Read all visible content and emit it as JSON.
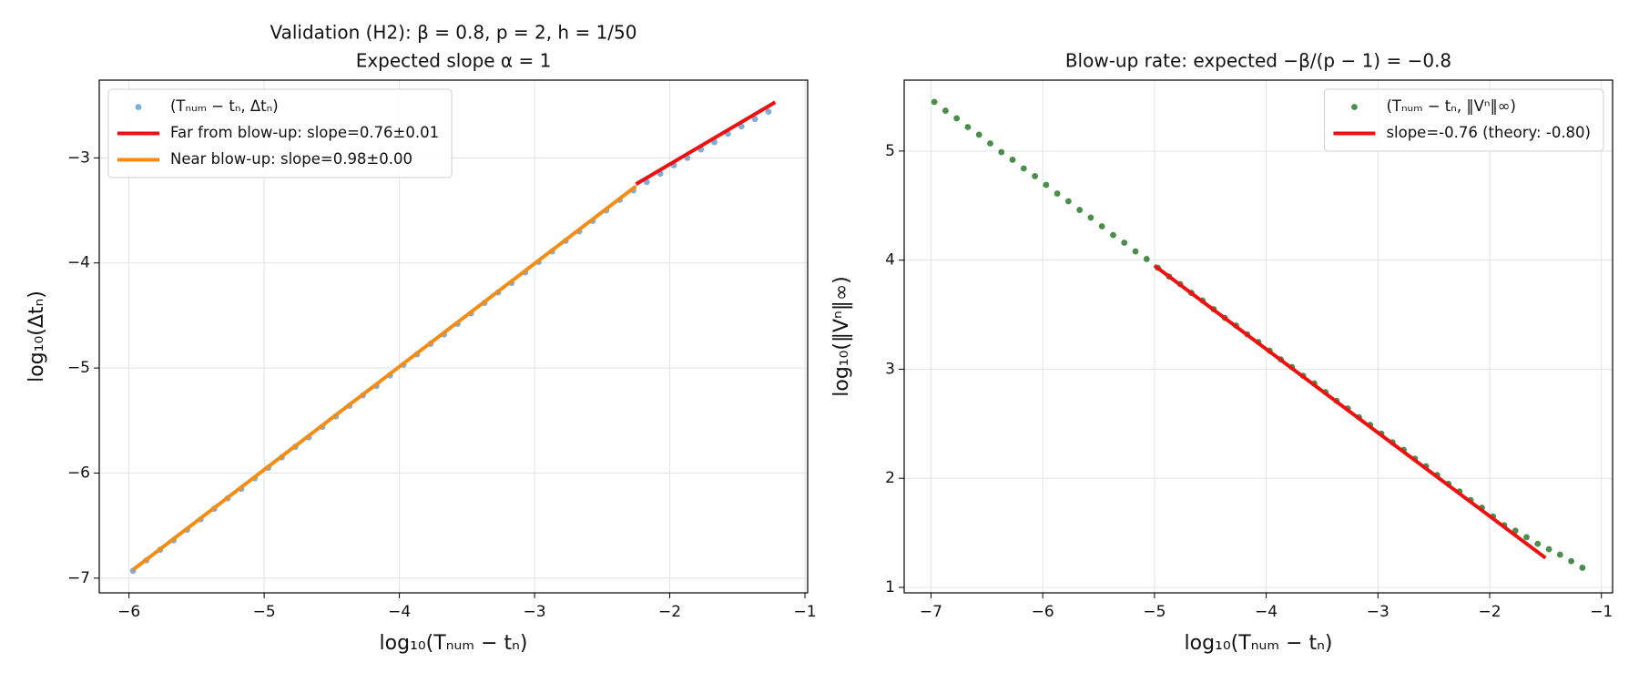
{
  "chart_data": [
    {
      "type": "scatter",
      "title": "Validation (H2): β = 0.8, p = 2, h = 1/50",
      "subtitle": "Expected slope α = 1",
      "xlabel": "log₁₀(Tₙᵤₘ − tₙ)",
      "ylabel": "log₁₀(Δtₙ)",
      "xlim": [
        -6.22,
        -0.98
      ],
      "ylim": [
        -7.14,
        -2.26
      ],
      "xticks": [
        {
          "value": -6,
          "label": "−6"
        },
        {
          "value": -5,
          "label": "−5"
        },
        {
          "value": -4,
          "label": "−4"
        },
        {
          "value": -3,
          "label": "−3"
        },
        {
          "value": -2,
          "label": "−2"
        },
        {
          "value": -1,
          "label": "−1"
        }
      ],
      "yticks": [
        {
          "value": -7,
          "label": "−7"
        },
        {
          "value": -6,
          "label": "−6"
        },
        {
          "value": -5,
          "label": "−5"
        },
        {
          "value": -4,
          "label": "−4"
        },
        {
          "value": -3,
          "label": "−3"
        }
      ],
      "grid": true,
      "legend": "upper left",
      "series": [
        {
          "name": "(Tₙᵤₘ − tₙ, Δtₙ)",
          "type": "scatter",
          "color": "#6a9fcf",
          "x": [
            -5.97,
            -5.87,
            -5.77,
            -5.67,
            -5.57,
            -5.47,
            -5.37,
            -5.27,
            -5.17,
            -5.07,
            -4.97,
            -4.87,
            -4.77,
            -4.67,
            -4.57,
            -4.47,
            -4.37,
            -4.27,
            -4.17,
            -4.07,
            -3.97,
            -3.87,
            -3.77,
            -3.67,
            -3.57,
            -3.47,
            -3.37,
            -3.27,
            -3.17,
            -3.07,
            -2.97,
            -2.87,
            -2.77,
            -2.67,
            -2.57,
            -2.47,
            -2.37,
            -2.27,
            -2.17,
            -2.07,
            -1.97,
            -1.87,
            -1.77,
            -1.67,
            -1.57,
            -1.47,
            -1.37,
            -1.27
          ],
          "values": [
            -6.93,
            -6.83,
            -6.73,
            -6.64,
            -6.54,
            -6.44,
            -6.34,
            -6.24,
            -6.15,
            -6.05,
            -5.95,
            -5.85,
            -5.75,
            -5.66,
            -5.56,
            -5.46,
            -5.36,
            -5.26,
            -5.17,
            -5.07,
            -4.97,
            -4.87,
            -4.77,
            -4.68,
            -4.58,
            -4.48,
            -4.38,
            -4.28,
            -4.19,
            -4.09,
            -3.99,
            -3.89,
            -3.79,
            -3.7,
            -3.6,
            -3.5,
            -3.4,
            -3.31,
            -3.23,
            -3.15,
            -3.07,
            -3.0,
            -2.92,
            -2.85,
            -2.77,
            -2.7,
            -2.63,
            -2.56
          ]
        },
        {
          "name": "Far from blow-up: slope=0.76±0.01",
          "type": "line",
          "color": "#f01010",
          "x": [
            -2.25,
            -1.22
          ],
          "values": [
            -3.25,
            -2.47
          ]
        },
        {
          "name": "Near blow-up: slope=0.98±0.00",
          "type": "line",
          "color": "#f78c12",
          "x": [
            -5.97,
            -2.25
          ],
          "values": [
            -6.92,
            -3.27
          ]
        }
      ]
    },
    {
      "type": "scatter",
      "title": "Blow-up rate: expected −β/(p − 1) = −0.8",
      "xlabel": "log₁₀(Tₙᵤₘ − tₙ)",
      "ylabel": "log₁₀(‖Vⁿ‖∞)",
      "xlim": [
        -7.24,
        -0.9
      ],
      "ylim": [
        0.95,
        5.65
      ],
      "xticks": [
        {
          "value": -7,
          "label": "−7"
        },
        {
          "value": -6,
          "label": "−6"
        },
        {
          "value": -5,
          "label": "−5"
        },
        {
          "value": -4,
          "label": "−4"
        },
        {
          "value": -3,
          "label": "−3"
        },
        {
          "value": -2,
          "label": "−2"
        },
        {
          "value": -1,
          "label": "−1"
        }
      ],
      "yticks": [
        1,
        2,
        3,
        4,
        5
      ],
      "grid": true,
      "legend": "upper right",
      "series": [
        {
          "name": "(Tₙᵤₘ − tₙ, ‖Vⁿ‖∞)",
          "type": "scatter",
          "color": "#2b7a2b",
          "x": [
            -6.97,
            -6.87,
            -6.77,
            -6.67,
            -6.57,
            -6.47,
            -6.37,
            -6.27,
            -6.17,
            -6.07,
            -5.97,
            -5.87,
            -5.77,
            -5.67,
            -5.57,
            -5.47,
            -5.37,
            -5.27,
            -5.17,
            -5.07,
            -4.97,
            -4.87,
            -4.77,
            -4.67,
            -4.57,
            -4.47,
            -4.37,
            -4.27,
            -4.17,
            -4.07,
            -3.97,
            -3.87,
            -3.77,
            -3.67,
            -3.57,
            -3.47,
            -3.37,
            -3.27,
            -3.17,
            -3.07,
            -2.97,
            -2.87,
            -2.77,
            -2.67,
            -2.57,
            -2.47,
            -2.37,
            -2.27,
            -2.17,
            -2.07,
            -1.97,
            -1.87,
            -1.77,
            -1.67,
            -1.57,
            -1.47,
            -1.37,
            -1.27,
            -1.17
          ],
          "values": [
            5.45,
            5.37,
            5.3,
            5.22,
            5.15,
            5.07,
            4.99,
            4.92,
            4.84,
            4.77,
            4.69,
            4.61,
            4.54,
            4.46,
            4.39,
            4.31,
            4.23,
            4.16,
            4.08,
            4.01,
            3.93,
            3.85,
            3.78,
            3.7,
            3.63,
            3.55,
            3.47,
            3.4,
            3.32,
            3.25,
            3.17,
            3.09,
            3.02,
            2.94,
            2.87,
            2.79,
            2.71,
            2.64,
            2.56,
            2.49,
            2.41,
            2.33,
            2.26,
            2.18,
            2.11,
            2.03,
            1.95,
            1.88,
            1.8,
            1.73,
            1.65,
            1.57,
            1.52,
            1.46,
            1.4,
            1.35,
            1.3,
            1.24,
            1.18
          ]
        },
        {
          "name": "slope=-0.76 (theory: -0.80)",
          "type": "line",
          "color": "#f01010",
          "x": [
            -5.0,
            -1.5
          ],
          "values": [
            3.95,
            1.27
          ]
        }
      ]
    }
  ]
}
